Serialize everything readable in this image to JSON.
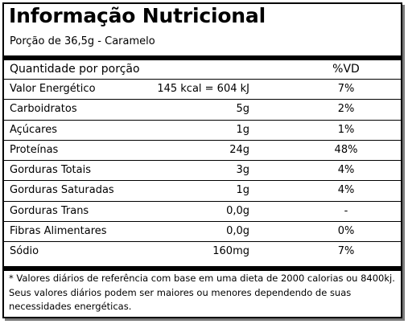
{
  "title": "Informação Nutricional",
  "portion": "Porção de 36,5g - Caramelo",
  "header": {
    "label": "Quantidade por porção",
    "vd": "%VD"
  },
  "rows": [
    {
      "name": "Valor Energético",
      "amount": "145 kcal = 604 kJ",
      "vd": "7%"
    },
    {
      "name": "Carboidratos",
      "amount": "5g",
      "vd": "2%"
    },
    {
      "name": "Açúcares",
      "amount": "1g",
      "vd": "1%"
    },
    {
      "name": "Proteínas",
      "amount": "24g",
      "vd": "48%"
    },
    {
      "name": "Gorduras Totais",
      "amount": "3g",
      "vd": "4%"
    },
    {
      "name": "Gorduras Saturadas",
      "amount": "1g",
      "vd": "4%"
    },
    {
      "name": "Gorduras Trans",
      "amount": "0,0g",
      "vd": "-"
    },
    {
      "name": "Fibras Alimentares",
      "amount": "0,0g",
      "vd": "0%"
    },
    {
      "name": "Sódio",
      "amount": "160mg",
      "vd": "7%"
    }
  ],
  "footnote": {
    "line1": "* Valores diários de referência com base em uma dieta de 2000 calorias ou 8400kj.",
    "line2": "Seus valores diários podem ser maiores ou menores dependendo de suas necessidades energéticas."
  }
}
